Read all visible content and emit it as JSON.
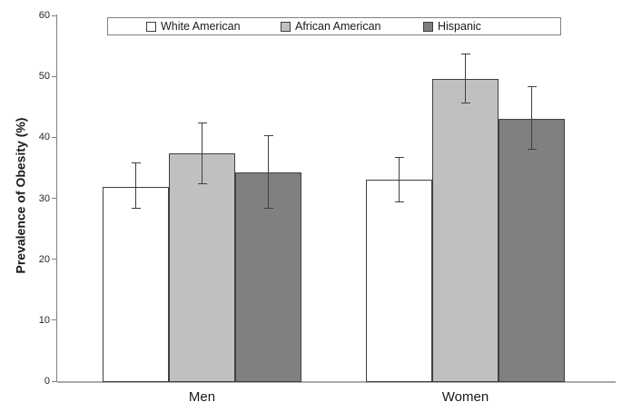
{
  "chart_data": {
    "type": "bar",
    "title": "",
    "xlabel": "",
    "ylabel": "Prevalence of Obesity (%)",
    "ylim": [
      0,
      60
    ],
    "yticks": [
      0,
      10,
      20,
      30,
      40,
      50,
      60
    ],
    "categories": [
      "Men",
      "Women"
    ],
    "series": [
      {
        "name": "White American",
        "color": "#ffffff",
        "values": [
          31.9,
          33.0
        ],
        "error_low": [
          28.3,
          29.4
        ],
        "error_high": [
          35.9,
          36.7
        ]
      },
      {
        "name": "African American",
        "color": "#c0c0c0",
        "values": [
          37.3,
          49.6
        ],
        "error_low": [
          32.3,
          45.5
        ],
        "error_high": [
          42.5,
          53.7
        ]
      },
      {
        "name": "Hispanic",
        "color": "#808080",
        "values": [
          34.3,
          43.0
        ],
        "error_low": [
          28.3,
          38.0
        ],
        "error_high": [
          40.4,
          48.4
        ]
      }
    ],
    "legend_position": "top-center",
    "grid": false,
    "error_bars": true,
    "bar_border_color": "#3f3f3f",
    "error_bar_color": "#3f3f3f",
    "axis_color": "#808080"
  }
}
